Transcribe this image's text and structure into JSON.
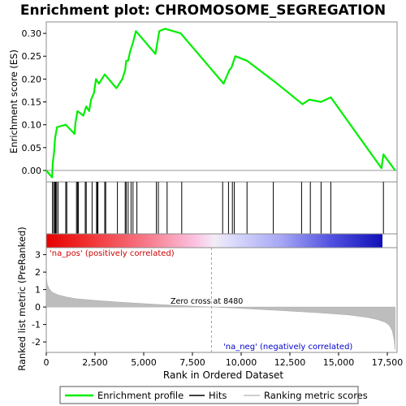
{
  "chart_data": {
    "type": "line",
    "title": "Enrichment plot: CHROMOSOME_SEGREGATION",
    "top_panel": {
      "ylabel": "Enrichment score (ES)",
      "ylim": [
        -0.025,
        0.325
      ],
      "yticks": [
        0.0,
        0.05,
        0.1,
        0.15,
        0.2,
        0.25,
        0.3
      ],
      "ytick_labels": [
        "0.00",
        "0.05",
        "0.10",
        "0.15",
        "0.20",
        "0.25",
        "0.30"
      ],
      "series_name": "Enrichment profile",
      "color": "#00ee00",
      "es_x": [
        0,
        300,
        330,
        400,
        450,
        550,
        1000,
        1450,
        1500,
        1600,
        1900,
        2050,
        2200,
        2300,
        2450,
        2550,
        2700,
        3000,
        3600,
        3900,
        4050,
        4100,
        4200,
        4300,
        4450,
        4600,
        5600,
        5700,
        5800,
        6100,
        6900,
        9100,
        9400,
        9500,
        9700,
        10300,
        11700,
        13150,
        13500,
        14100,
        14600,
        17200,
        17300,
        17900
      ],
      "es_y": [
        0.0,
        -0.015,
        0.015,
        0.04,
        0.07,
        0.095,
        0.1,
        0.08,
        0.105,
        0.13,
        0.12,
        0.14,
        0.13,
        0.155,
        0.17,
        0.2,
        0.19,
        0.21,
        0.18,
        0.2,
        0.22,
        0.24,
        0.24,
        0.26,
        0.28,
        0.305,
        0.255,
        0.28,
        0.305,
        0.31,
        0.3,
        0.19,
        0.22,
        0.225,
        0.25,
        0.24,
        0.195,
        0.145,
        0.155,
        0.15,
        0.16,
        0.005,
        0.035,
        0.0
      ]
    },
    "hits_panel": {
      "hit_positions": [
        320,
        380,
        440,
        480,
        530,
        600,
        1000,
        1050,
        1550,
        1600,
        1650,
        2000,
        2050,
        2350,
        2580,
        2620,
        2650,
        3000,
        3050,
        3650,
        4050,
        4100,
        4200,
        4350,
        4450,
        4650,
        5650,
        5750,
        6200,
        6950,
        9050,
        9350,
        9550,
        9650,
        10300,
        11650,
        13100,
        13550,
        14100,
        14600,
        17300
      ]
    },
    "rank_panel": {
      "ylabel": "Ranked list metric (PreRanked)",
      "xlabel": "Rank in Ordered Dataset",
      "ylim": [
        -2.6,
        3.4
      ],
      "yticks": [
        -2,
        -1,
        0,
        1,
        2,
        3
      ],
      "ytick_labels": [
        "-2",
        "-1",
        "0",
        "1",
        "2",
        "3"
      ],
      "xlim": [
        0,
        18000
      ],
      "xticks": [
        0,
        2500,
        5000,
        7500,
        10000,
        12500,
        15000,
        17500
      ],
      "xtick_labels": [
        "0",
        "2,500",
        "5,000",
        "7,500",
        "10,000",
        "12,500",
        "15,000",
        "17,500"
      ],
      "metric_x": [
        0,
        50,
        150,
        300,
        600,
        1000,
        1500,
        2500,
        4000,
        6000,
        8480,
        10000,
        12000,
        14000,
        15500,
        16500,
        17000,
        17400,
        17600,
        17750,
        17850,
        17900
      ],
      "metric_y": [
        1.8,
        1.3,
        1.05,
        0.85,
        0.7,
        0.58,
        0.48,
        0.38,
        0.26,
        0.13,
        0.0,
        -0.08,
        -0.2,
        -0.33,
        -0.45,
        -0.6,
        -0.72,
        -0.88,
        -1.05,
        -1.35,
        -1.9,
        -2.45
      ],
      "zero_cross": 8480,
      "zero_cross_label": "Zero cross at 8480",
      "pos_label": "'na_pos' (positively correlated)",
      "neg_label": "'na_neg' (negatively correlated)",
      "pos_color": "#cc0000",
      "neg_color": "#0000cc"
    },
    "legend": {
      "placement": "bottom",
      "entries": [
        "Enrichment profile",
        "Hits",
        "Ranking metric scores"
      ]
    }
  }
}
